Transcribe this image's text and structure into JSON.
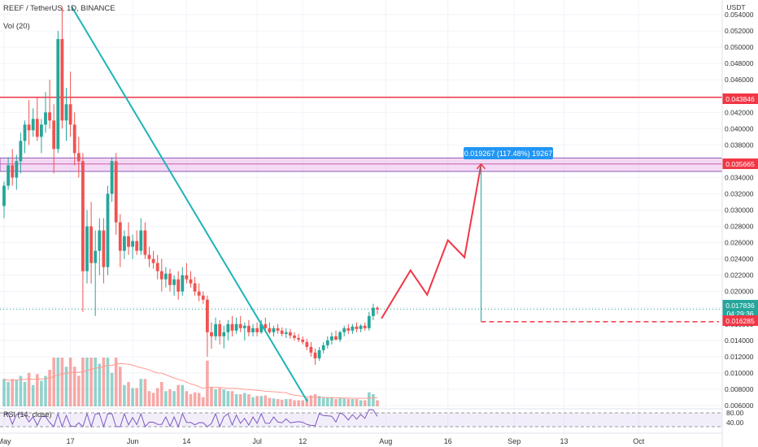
{
  "header": {
    "symbol_line": "REEF / TetherUS, 1D, BINANCE",
    "volume_label": "Vol (20)",
    "rsi_label": "RSI (14, close)",
    "currency": "USDT"
  },
  "x_axis": {
    "ticks": [
      {
        "label": "May",
        "day": 0
      },
      {
        "label": "17",
        "day": 16
      },
      {
        "label": "Jun",
        "day": 31
      },
      {
        "label": "14",
        "day": 44
      },
      {
        "label": "Jul",
        "day": 61
      },
      {
        "label": "12",
        "day": 72
      },
      {
        "label": "Aug",
        "day": 92
      },
      {
        "label": "16",
        "day": 107
      },
      {
        "label": "Sep",
        "day": 123
      },
      {
        "label": "13",
        "day": 135
      },
      {
        "label": "Oct",
        "day": 153
      }
    ]
  },
  "price_axis": {
    "ticks": [
      "0.054000",
      "0.052000",
      "0.050000",
      "0.048000",
      "0.046000",
      "0.044000",
      "0.042000",
      "0.040000",
      "0.038000",
      "0.036000",
      "0.034000",
      "0.032000",
      "0.030000",
      "0.028000",
      "0.026000",
      "0.024000",
      "0.022000",
      "0.020000",
      "0.018000",
      "0.016000",
      "0.014000",
      "0.012000",
      "0.010000",
      "0.008000",
      "0.006000"
    ],
    "range": [
      0.0055,
      0.0555
    ]
  },
  "rsi_axis": {
    "ticks": [
      "80.00",
      "40.00"
    ]
  },
  "price_labels": {
    "resistance": "0.043846",
    "zone": "0.035665",
    "last": "0.017836",
    "countdown": "04:29:36",
    "target_base": "0.016285"
  },
  "measure_label": "0.019267 (117.48%) 19267",
  "chart_data": {
    "type": "candlestick",
    "title": "REEF / TetherUS, 1D, BINANCE",
    "x_unit": "days since first visible candle (1 May)",
    "ylim": [
      0.0055,
      0.0555
    ],
    "horizontal_lines": [
      {
        "price": 0.043846,
        "color": "#f23645"
      }
    ],
    "zone": {
      "low": 0.03475,
      "high": 0.0364,
      "mid": 0.035665
    },
    "last_price": 0.017836,
    "projection_path": [
      {
        "day": 91,
        "price": 0.0167
      },
      {
        "day": 98,
        "price": 0.0226
      },
      {
        "day": 102,
        "price": 0.0196
      },
      {
        "day": 107,
        "price": 0.0263
      },
      {
        "day": 111,
        "price": 0.0242
      },
      {
        "day": 115,
        "price": 0.0356
      }
    ],
    "target_base": {
      "day_from": 115,
      "day_to": 153,
      "price": 0.016285
    },
    "candles": [
      {
        "d": 0,
        "o": 0.0305,
        "h": 0.0335,
        "l": 0.029,
        "c": 0.033
      },
      {
        "d": 1,
        "o": 0.033,
        "h": 0.0365,
        "l": 0.0325,
        "c": 0.0355
      },
      {
        "d": 2,
        "o": 0.0355,
        "h": 0.0375,
        "l": 0.033,
        "c": 0.034
      },
      {
        "d": 3,
        "o": 0.034,
        "h": 0.0368,
        "l": 0.0325,
        "c": 0.036
      },
      {
        "d": 4,
        "o": 0.036,
        "h": 0.0395,
        "l": 0.0345,
        "c": 0.0385
      },
      {
        "d": 5,
        "o": 0.0385,
        "h": 0.041,
        "l": 0.037,
        "c": 0.0405
      },
      {
        "d": 6,
        "o": 0.0405,
        "h": 0.0435,
        "l": 0.038,
        "c": 0.0398
      },
      {
        "d": 7,
        "o": 0.0398,
        "h": 0.0425,
        "l": 0.039,
        "c": 0.0412
      },
      {
        "d": 8,
        "o": 0.0412,
        "h": 0.0438,
        "l": 0.0385,
        "c": 0.039
      },
      {
        "d": 9,
        "o": 0.039,
        "h": 0.0412,
        "l": 0.037,
        "c": 0.0405
      },
      {
        "d": 10,
        "o": 0.0405,
        "h": 0.0445,
        "l": 0.0395,
        "c": 0.042
      },
      {
        "d": 11,
        "o": 0.042,
        "h": 0.046,
        "l": 0.04,
        "c": 0.041
      },
      {
        "d": 12,
        "o": 0.041,
        "h": 0.043,
        "l": 0.0345,
        "c": 0.0375
      },
      {
        "d": 13,
        "o": 0.0375,
        "h": 0.052,
        "l": 0.037,
        "c": 0.051
      },
      {
        "d": 14,
        "o": 0.051,
        "h": 0.055,
        "l": 0.04,
        "c": 0.041
      },
      {
        "d": 15,
        "o": 0.041,
        "h": 0.045,
        "l": 0.0385,
        "c": 0.043
      },
      {
        "d": 16,
        "o": 0.043,
        "h": 0.047,
        "l": 0.039,
        "c": 0.0405
      },
      {
        "d": 17,
        "o": 0.0405,
        "h": 0.042,
        "l": 0.0355,
        "c": 0.037
      },
      {
        "d": 18,
        "o": 0.037,
        "h": 0.039,
        "l": 0.034,
        "c": 0.036
      },
      {
        "d": 19,
        "o": 0.036,
        "h": 0.037,
        "l": 0.0175,
        "c": 0.0225
      },
      {
        "d": 20,
        "o": 0.0225,
        "h": 0.03,
        "l": 0.021,
        "c": 0.028
      },
      {
        "d": 21,
        "o": 0.028,
        "h": 0.031,
        "l": 0.021,
        "c": 0.0235
      },
      {
        "d": 22,
        "o": 0.0235,
        "h": 0.0275,
        "l": 0.017,
        "c": 0.025
      },
      {
        "d": 23,
        "o": 0.025,
        "h": 0.029,
        "l": 0.022,
        "c": 0.0275
      },
      {
        "d": 24,
        "o": 0.0275,
        "h": 0.029,
        "l": 0.021,
        "c": 0.023
      },
      {
        "d": 25,
        "o": 0.023,
        "h": 0.033,
        "l": 0.022,
        "c": 0.032
      },
      {
        "d": 26,
        "o": 0.032,
        "h": 0.0365,
        "l": 0.031,
        "c": 0.036
      },
      {
        "d": 27,
        "o": 0.036,
        "h": 0.037,
        "l": 0.027,
        "c": 0.0285
      },
      {
        "d": 28,
        "o": 0.0285,
        "h": 0.0295,
        "l": 0.023,
        "c": 0.025
      },
      {
        "d": 29,
        "o": 0.025,
        "h": 0.0275,
        "l": 0.024,
        "c": 0.0268
      },
      {
        "d": 30,
        "o": 0.0268,
        "h": 0.0285,
        "l": 0.0245,
        "c": 0.0255
      },
      {
        "d": 31,
        "o": 0.0255,
        "h": 0.027,
        "l": 0.024,
        "c": 0.0262
      },
      {
        "d": 32,
        "o": 0.0262,
        "h": 0.0275,
        "l": 0.0245,
        "c": 0.025
      },
      {
        "d": 33,
        "o": 0.025,
        "h": 0.029,
        "l": 0.0245,
        "c": 0.0275
      },
      {
        "d": 34,
        "o": 0.0275,
        "h": 0.0285,
        "l": 0.024,
        "c": 0.0245
      },
      {
        "d": 35,
        "o": 0.0245,
        "h": 0.0255,
        "l": 0.023,
        "c": 0.024
      },
      {
        "d": 36,
        "o": 0.024,
        "h": 0.025,
        "l": 0.0228,
        "c": 0.0235
      },
      {
        "d": 37,
        "o": 0.0235,
        "h": 0.0245,
        "l": 0.0215,
        "c": 0.0225
      },
      {
        "d": 38,
        "o": 0.0225,
        "h": 0.024,
        "l": 0.02,
        "c": 0.0215
      },
      {
        "d": 39,
        "o": 0.0215,
        "h": 0.023,
        "l": 0.0205,
        "c": 0.0222
      },
      {
        "d": 40,
        "o": 0.0222,
        "h": 0.0228,
        "l": 0.02,
        "c": 0.0208
      },
      {
        "d": 41,
        "o": 0.0208,
        "h": 0.022,
        "l": 0.0195,
        "c": 0.0215
      },
      {
        "d": 42,
        "o": 0.0215,
        "h": 0.0225,
        "l": 0.019,
        "c": 0.02
      },
      {
        "d": 43,
        "o": 0.02,
        "h": 0.023,
        "l": 0.0195,
        "c": 0.022
      },
      {
        "d": 44,
        "o": 0.022,
        "h": 0.0235,
        "l": 0.021,
        "c": 0.0215
      },
      {
        "d": 45,
        "o": 0.0215,
        "h": 0.0225,
        "l": 0.0205,
        "c": 0.021
      },
      {
        "d": 46,
        "o": 0.021,
        "h": 0.0218,
        "l": 0.0195,
        "c": 0.02
      },
      {
        "d": 47,
        "o": 0.02,
        "h": 0.021,
        "l": 0.0188,
        "c": 0.0195
      },
      {
        "d": 48,
        "o": 0.0195,
        "h": 0.02,
        "l": 0.0185,
        "c": 0.019
      },
      {
        "d": 49,
        "o": 0.019,
        "h": 0.0195,
        "l": 0.012,
        "c": 0.015
      },
      {
        "d": 50,
        "o": 0.015,
        "h": 0.0162,
        "l": 0.013,
        "c": 0.0145
      },
      {
        "d": 51,
        "o": 0.0145,
        "h": 0.0168,
        "l": 0.014,
        "c": 0.016
      },
      {
        "d": 52,
        "o": 0.016,
        "h": 0.0165,
        "l": 0.0135,
        "c": 0.0145
      },
      {
        "d": 53,
        "o": 0.0145,
        "h": 0.0158,
        "l": 0.013,
        "c": 0.015
      },
      {
        "d": 54,
        "o": 0.015,
        "h": 0.0165,
        "l": 0.014,
        "c": 0.016
      },
      {
        "d": 55,
        "o": 0.016,
        "h": 0.017,
        "l": 0.0145,
        "c": 0.0152
      },
      {
        "d": 56,
        "o": 0.0152,
        "h": 0.0168,
        "l": 0.0148,
        "c": 0.016
      },
      {
        "d": 57,
        "o": 0.016,
        "h": 0.017,
        "l": 0.015,
        "c": 0.0155
      },
      {
        "d": 58,
        "o": 0.0155,
        "h": 0.0162,
        "l": 0.014,
        "c": 0.0158
      },
      {
        "d": 59,
        "o": 0.0158,
        "h": 0.0165,
        "l": 0.0145,
        "c": 0.015
      },
      {
        "d": 60,
        "o": 0.015,
        "h": 0.016,
        "l": 0.0145,
        "c": 0.0155
      },
      {
        "d": 61,
        "o": 0.0155,
        "h": 0.0162,
        "l": 0.0145,
        "c": 0.015
      },
      {
        "d": 62,
        "o": 0.015,
        "h": 0.0165,
        "l": 0.0148,
        "c": 0.016
      },
      {
        "d": 63,
        "o": 0.016,
        "h": 0.0168,
        "l": 0.015,
        "c": 0.0155
      },
      {
        "d": 64,
        "o": 0.0155,
        "h": 0.0162,
        "l": 0.0148,
        "c": 0.015
      },
      {
        "d": 65,
        "o": 0.015,
        "h": 0.0158,
        "l": 0.0145,
        "c": 0.0155
      },
      {
        "d": 66,
        "o": 0.0155,
        "h": 0.016,
        "l": 0.0148,
        "c": 0.0152
      },
      {
        "d": 67,
        "o": 0.0152,
        "h": 0.0156,
        "l": 0.0145,
        "c": 0.0148
      },
      {
        "d": 68,
        "o": 0.0148,
        "h": 0.0155,
        "l": 0.0143,
        "c": 0.015
      },
      {
        "d": 69,
        "o": 0.015,
        "h": 0.0154,
        "l": 0.0142,
        "c": 0.0146
      },
      {
        "d": 70,
        "o": 0.0146,
        "h": 0.015,
        "l": 0.014,
        "c": 0.0143
      },
      {
        "d": 71,
        "o": 0.0143,
        "h": 0.0148,
        "l": 0.0138,
        "c": 0.0141
      },
      {
        "d": 72,
        "o": 0.0141,
        "h": 0.0145,
        "l": 0.0135,
        "c": 0.0138
      },
      {
        "d": 73,
        "o": 0.0138,
        "h": 0.0142,
        "l": 0.0128,
        "c": 0.0132
      },
      {
        "d": 74,
        "o": 0.0132,
        "h": 0.0138,
        "l": 0.012,
        "c": 0.0125
      },
      {
        "d": 75,
        "o": 0.0125,
        "h": 0.013,
        "l": 0.011,
        "c": 0.0118
      },
      {
        "d": 76,
        "o": 0.0118,
        "h": 0.0132,
        "l": 0.0115,
        "c": 0.0128
      },
      {
        "d": 77,
        "o": 0.0128,
        "h": 0.0138,
        "l": 0.0124,
        "c": 0.0134
      },
      {
        "d": 78,
        "o": 0.0134,
        "h": 0.0145,
        "l": 0.013,
        "c": 0.014
      },
      {
        "d": 79,
        "o": 0.014,
        "h": 0.015,
        "l": 0.0135,
        "c": 0.0145
      },
      {
        "d": 80,
        "o": 0.0145,
        "h": 0.0152,
        "l": 0.014,
        "c": 0.0141
      },
      {
        "d": 81,
        "o": 0.0141,
        "h": 0.0152,
        "l": 0.0138,
        "c": 0.015
      },
      {
        "d": 82,
        "o": 0.015,
        "h": 0.0158,
        "l": 0.0145,
        "c": 0.0155
      },
      {
        "d": 83,
        "o": 0.0155,
        "h": 0.016,
        "l": 0.0148,
        "c": 0.0152
      },
      {
        "d": 84,
        "o": 0.0152,
        "h": 0.016,
        "l": 0.0148,
        "c": 0.0157
      },
      {
        "d": 85,
        "o": 0.0157,
        "h": 0.0162,
        "l": 0.015,
        "c": 0.0154
      },
      {
        "d": 86,
        "o": 0.0154,
        "h": 0.016,
        "l": 0.015,
        "c": 0.0158
      },
      {
        "d": 87,
        "o": 0.0158,
        "h": 0.0162,
        "l": 0.0152,
        "c": 0.0155
      },
      {
        "d": 88,
        "o": 0.0155,
        "h": 0.0175,
        "l": 0.0152,
        "c": 0.017
      },
      {
        "d": 89,
        "o": 0.017,
        "h": 0.0185,
        "l": 0.0165,
        "c": 0.018
      },
      {
        "d": 90,
        "o": 0.018,
        "h": 0.0182,
        "l": 0.0172,
        "c": 0.0178
      }
    ]
  }
}
